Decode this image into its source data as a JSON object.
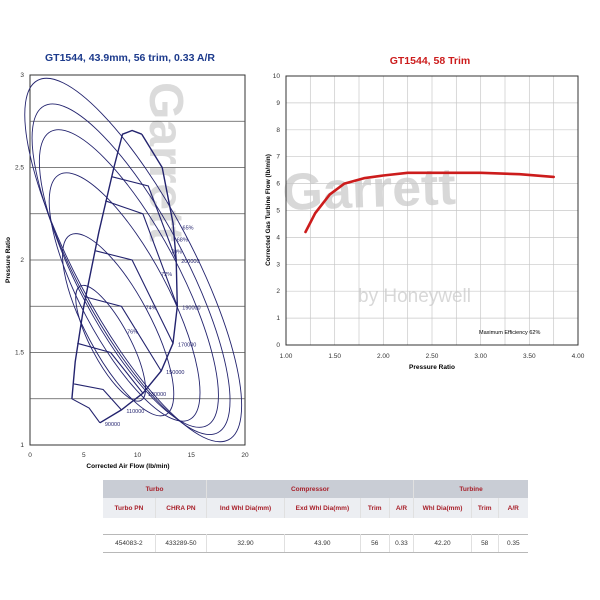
{
  "chart_data": [
    {
      "type": "contour",
      "title": "GT1544, 43.9mm, 56 trim, 0.33 A/R",
      "xlabel": "Corrected Air Flow (lb/min)",
      "ylabel": "Pressure Ratio",
      "xlim": [
        0,
        20
      ],
      "ylim": [
        1,
        3
      ],
      "x_ticks": [
        "0",
        "5",
        "10",
        "15",
        "20"
      ],
      "y_ticks": [
        "1",
        "1.5",
        "2",
        "2.5",
        "3"
      ],
      "grid": "horizontal",
      "surge_line": [
        [
          3.9,
          1.25
        ],
        [
          4.2,
          1.45
        ],
        [
          5,
          1.75
        ],
        [
          6.4,
          2.15
        ],
        [
          7.8,
          2.5
        ],
        [
          8.6,
          2.68
        ],
        [
          9.5,
          2.7
        ],
        [
          10.4,
          2.68
        ]
      ],
      "choke_line": [
        [
          10.4,
          2.68
        ],
        [
          12.3,
          2.5
        ],
        [
          13.3,
          2.2
        ],
        [
          13.6,
          2.0
        ],
        [
          13.7,
          1.75
        ],
        [
          13.3,
          1.55
        ],
        [
          12.2,
          1.4
        ],
        [
          10.5,
          1.28
        ],
        [
          8.5,
          1.19
        ],
        [
          6.5,
          1.12
        ]
      ],
      "speed_lines": [
        {
          "label": "90000",
          "points": [
            [
              3.9,
              1.25
            ],
            [
              5.5,
              1.2
            ],
            [
              6.5,
              1.12
            ]
          ]
        },
        {
          "label": "110000",
          "points": [
            [
              4.1,
              1.33
            ],
            [
              6.8,
              1.3
            ],
            [
              8.5,
              1.19
            ]
          ]
        },
        {
          "label": "130000",
          "points": [
            [
              4.4,
              1.55
            ],
            [
              7.5,
              1.5
            ],
            [
              10.5,
              1.28
            ]
          ]
        },
        {
          "label": "150000",
          "points": [
            [
              5.2,
              1.8
            ],
            [
              8.5,
              1.75
            ],
            [
              12.2,
              1.4
            ]
          ]
        },
        {
          "label": "170000",
          "points": [
            [
              6.1,
              2.05
            ],
            [
              9.5,
              2.0
            ],
            [
              13.3,
              1.55
            ]
          ]
        },
        {
          "label": "190000",
          "points": [
            [
              7,
              2.32
            ],
            [
              10.5,
              2.25
            ],
            [
              13.7,
              1.75
            ]
          ]
        },
        {
          "label": "200000",
          "points": [
            [
              7.6,
              2.45
            ],
            [
              11,
              2.4
            ],
            [
              13.6,
              2.0
            ]
          ]
        }
      ],
      "efficiency_islands": [
        {
          "label": "76%",
          "center": [
            7.5,
            1.55
          ],
          "rx": 1.8,
          "ry": 0.35
        },
        {
          "label": "74%",
          "center": [
            8.2,
            1.65
          ],
          "rx": 3.0,
          "ry": 0.55
        },
        {
          "label": "72%",
          "center": [
            8.8,
            1.8
          ],
          "rx": 4.0,
          "ry": 0.75
        },
        {
          "label": "70%",
          "center": [
            9.2,
            1.9
          ],
          "rx": 4.6,
          "ry": 0.9
        },
        {
          "label": "68%",
          "center": [
            9.4,
            1.95
          ],
          "rx": 5.0,
          "ry": 1.0
        },
        {
          "label": "65%",
          "center": [
            9.6,
            2.0
          ],
          "rx": 5.4,
          "ry": 1.1
        }
      ]
    },
    {
      "type": "line",
      "title": "GT1544, 58 Trim",
      "xlabel": "Pressure Ratio",
      "ylabel": "Corrected Gas Turbine Flow (lb/min)",
      "xlim": [
        1.0,
        4.0
      ],
      "ylim": [
        0,
        10
      ],
      "x_ticks": [
        "1.00",
        "1.50",
        "2.00",
        "2.50",
        "3.00",
        "3.50",
        "4.00"
      ],
      "y_ticks": [
        "0",
        "1",
        "2",
        "3",
        "4",
        "5",
        "6",
        "7",
        "8",
        "9",
        "10"
      ],
      "grid": "both",
      "series": [
        {
          "points": [
            [
              1.2,
              4.2
            ],
            [
              1.3,
              4.9
            ],
            [
              1.45,
              5.6
            ],
            [
              1.6,
              6.0
            ],
            [
              1.8,
              6.2
            ],
            [
              2.0,
              6.3
            ],
            [
              2.25,
              6.4
            ],
            [
              2.6,
              6.4
            ],
            [
              3.0,
              6.4
            ],
            [
              3.4,
              6.35
            ],
            [
              3.75,
              6.25
            ]
          ]
        }
      ],
      "annotation": "Maximum Efficiency 62%"
    }
  ],
  "watermark": {
    "brand": "Garrett",
    "sub": "by Honeywell"
  },
  "colors": {
    "map_line": "#23236e",
    "turbine_line": "#cc1c1c",
    "title_blue": "#1c3a8c",
    "title_red": "#cc1c1c"
  },
  "table": {
    "groups": [
      "Turbo",
      "Compressor",
      "Turbine"
    ],
    "headers": [
      "Turbo PN",
      "CHRA PN",
      "Ind Whl Dia(mm)",
      "Exd Whl Dia(mm)",
      "Trim",
      "A/R",
      "Whl Dia(mm)",
      "Trim",
      "A/R"
    ],
    "row": [
      "454083-2",
      "433289-50",
      "32.90",
      "43.90",
      "56",
      "0.33",
      "42.20",
      "58",
      "0.35"
    ]
  }
}
